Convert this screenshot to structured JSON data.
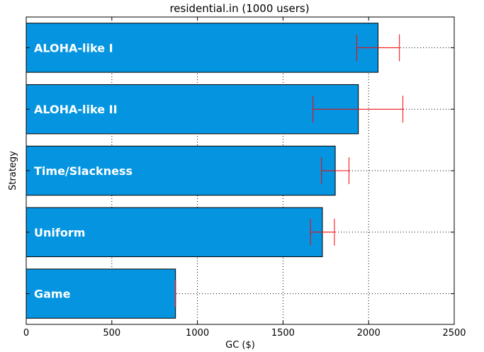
{
  "chart_data": {
    "type": "bar",
    "orientation": "horizontal",
    "title": "residential.in (1000 users)",
    "xlabel": "GC ($)",
    "ylabel": "Strategy",
    "xlim": [
      0,
      2500
    ],
    "xticks": [
      "0",
      "500",
      "1000",
      "1500",
      "2000",
      "2500"
    ],
    "grid": true,
    "categories": [
      "ALOHA-like I",
      "ALOHA-like II",
      "Time/Slackness",
      "Uniform",
      "Game"
    ],
    "values": [
      2055,
      1940,
      1805,
      1730,
      872
    ],
    "error_low": [
      1930,
      1675,
      1725,
      1660,
      872
    ],
    "error_high": [
      2180,
      2200,
      1885,
      1800,
      872
    ],
    "colors": {
      "bar": "#0595e0",
      "error": "#ff0000",
      "grid": "#000000"
    }
  }
}
